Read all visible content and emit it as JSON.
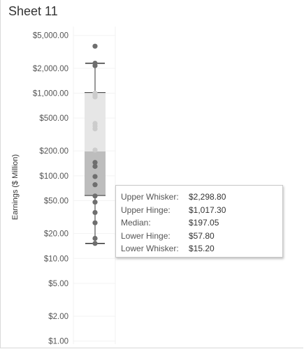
{
  "sheet": {
    "title": "Sheet 11"
  },
  "chart_data": {
    "type": "boxplot",
    "y_axis": {
      "label": "Earnings ($ Million)",
      "scale": "log",
      "range": [
        0.92,
        6400
      ],
      "ticks": [
        {
          "value": 5000,
          "label": "$5,000.00"
        },
        {
          "value": 2000,
          "label": "$2,000.00"
        },
        {
          "value": 1000,
          "label": "$1,000.00"
        },
        {
          "value": 500,
          "label": "$500.00"
        },
        {
          "value": 200,
          "label": "$200.00"
        },
        {
          "value": 100,
          "label": "$100.00"
        },
        {
          "value": 50,
          "label": "$50.00"
        },
        {
          "value": 20,
          "label": "$20.00"
        },
        {
          "value": 10,
          "label": "$10.00"
        },
        {
          "value": 5,
          "label": "$5.00"
        },
        {
          "value": 2,
          "label": "$2.00"
        },
        {
          "value": 1,
          "label": "$1.00"
        }
      ]
    },
    "box": {
      "upper_whisker": 2298.8,
      "upper_hinge": 1017.3,
      "median": 197.05,
      "lower_hinge": 57.8,
      "lower_whisker": 15.2
    },
    "points": [
      3700,
      2300,
      2150,
      1000,
      950,
      900,
      430,
      400,
      370,
      205,
      145,
      130,
      98,
      78,
      57,
      48,
      36,
      27,
      17.5,
      15.2
    ],
    "colors": {
      "upper_box": "#e6e6e6",
      "lower_box": "#bdbdbd",
      "dot": "#6e6e6e",
      "dot_light": "#cccccc",
      "whisker": "#333333"
    }
  },
  "tooltip": {
    "rows": [
      {
        "key": "Upper Whisker:",
        "value": "$2,298.80"
      },
      {
        "key": "Upper Hinge:",
        "value": "$1,017.30"
      },
      {
        "key": "Median:",
        "value": "$197.05"
      },
      {
        "key": "Lower Hinge:",
        "value": "$57.80"
      },
      {
        "key": "Lower Whisker:",
        "value": "$15.20"
      }
    ]
  }
}
